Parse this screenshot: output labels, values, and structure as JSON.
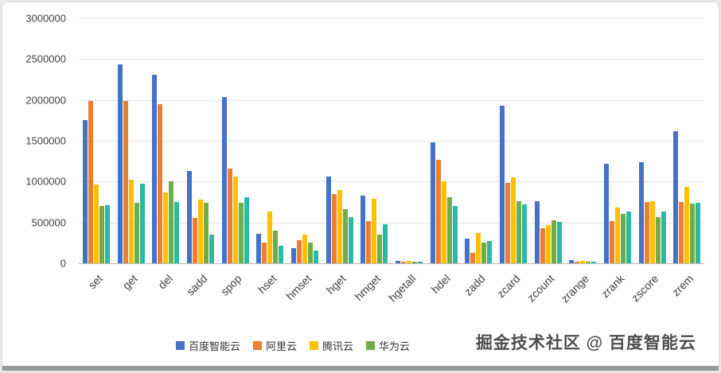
{
  "chart_data": {
    "type": "bar",
    "categories": [
      "set",
      "get",
      "del",
      "sadd",
      "spop",
      "hset",
      "hmset",
      "hget",
      "hmget",
      "hgetall",
      "hdel",
      "zadd",
      "zcard",
      "zcount",
      "zrange",
      "zrank",
      "zscore",
      "zrem"
    ],
    "series": [
      {
        "name": "百度智能云",
        "color": "#4472C4",
        "values": [
          1750000,
          2440000,
          2310000,
          1130000,
          2040000,
          360000,
          190000,
          1060000,
          830000,
          30000,
          1480000,
          300000,
          1930000,
          760000,
          40000,
          1220000,
          1240000,
          1620000
        ]
      },
      {
        "name": "阿里云",
        "color": "#ED7D31",
        "values": [
          1990000,
          1990000,
          1950000,
          560000,
          1160000,
          250000,
          280000,
          850000,
          520000,
          20000,
          1270000,
          130000,
          980000,
          430000,
          20000,
          520000,
          750000,
          750000
        ]
      },
      {
        "name": "腾讯云",
        "color": "#FFC000",
        "values": [
          960000,
          1020000,
          870000,
          780000,
          1060000,
          630000,
          350000,
          900000,
          790000,
          30000,
          1000000,
          370000,
          1050000,
          470000,
          30000,
          680000,
          760000,
          940000
        ]
      },
      {
        "name": "华为云",
        "color": "#70AD47",
        "values": [
          700000,
          740000,
          1000000,
          740000,
          740000,
          400000,
          250000,
          660000,
          350000,
          20000,
          810000,
          250000,
          760000,
          530000,
          20000,
          600000,
          570000,
          730000
        ]
      },
      {
        "name": "",
        "color": "#2DB8A4",
        "values": [
          710000,
          970000,
          750000,
          350000,
          810000,
          210000,
          160000,
          570000,
          480000,
          20000,
          700000,
          270000,
          720000,
          510000,
          20000,
          630000,
          630000,
          740000
        ]
      }
    ],
    "ylim": [
      0,
      3000000
    ],
    "y_ticks": [
      "3000000",
      "2500000",
      "2000000",
      "1500000",
      "1000000",
      "500000",
      "0"
    ],
    "grid": true,
    "legend_position": "bottom"
  },
  "watermark": {
    "text": "掘金技术社区 @ 百度智能云"
  }
}
